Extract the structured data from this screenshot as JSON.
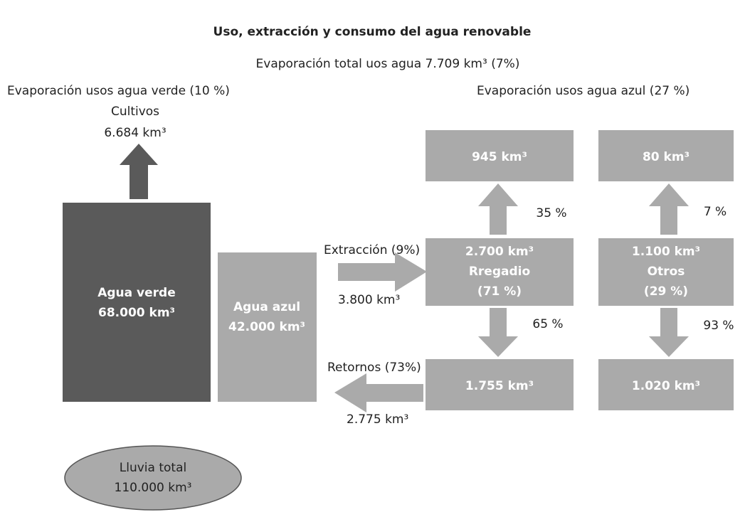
{
  "title": "Uso, extracción y consumo del agua renovable",
  "total_evaporation": "Evaporación total uos agua 7.709 km³ (7%)",
  "green": {
    "evaporation": "Evaporación usos agua verde (10 %)",
    "crops": "Cultivos",
    "crops_amount": "6.684 km³",
    "label": "Agua verde",
    "amount": "68.000 km³"
  },
  "blue": {
    "evaporation": "Evaporación usos agua azul (27 %)",
    "label": "Agua azul",
    "amount": "42.000 km³"
  },
  "irrigation": {
    "evaporated": "945 km³",
    "evap_pct": "35 %",
    "amount": "2.700 km³",
    "label": "Rregadio",
    "share": "(71 %)",
    "return_pct": "65 %",
    "returned": "1.755 km³"
  },
  "others": {
    "evaporated": "80 km³",
    "evap_pct": "7 %",
    "amount": "1.100 km³",
    "label": "Otros",
    "share": "(29 %)",
    "return_pct": "93 %",
    "returned": "1.020 km³"
  },
  "extraction": {
    "label": "Extracción (9%)",
    "amount": "3.800 km³"
  },
  "returns": {
    "label": "Retornos (73%)",
    "amount": "2.775 km³"
  },
  "rain": {
    "label": "Lluvia total",
    "amount": "110.000 km³"
  }
}
